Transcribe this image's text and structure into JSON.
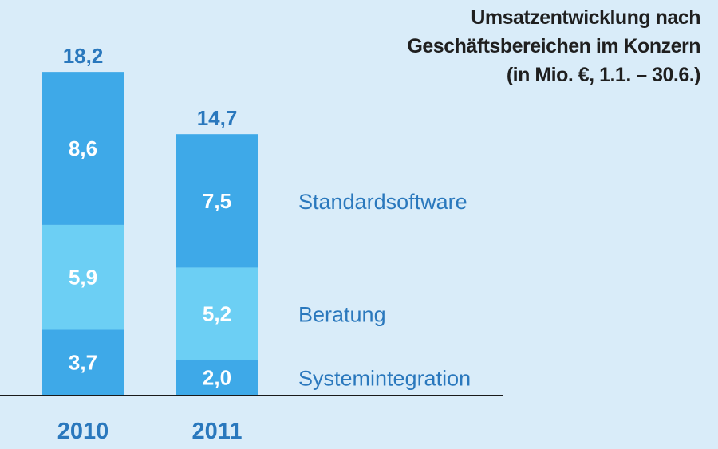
{
  "chart_data": {
    "type": "bar",
    "stacked": true,
    "title": [
      "Umsatzentwicklung nach",
      "Geschäftsbereichen im Konzern",
      "(in Mio. €, 1.1. – 30.6.)"
    ],
    "categories": [
      "2010",
      "2011"
    ],
    "totals": [
      "18,2",
      "14,7"
    ],
    "total_values": [
      18.2,
      14.7
    ],
    "series": [
      {
        "name": "Systemintegration",
        "values": [
          3.7,
          2.0
        ],
        "labels": [
          "3,7",
          "2,0"
        ],
        "color": "#3ea9e8"
      },
      {
        "name": "Beratung",
        "values": [
          5.9,
          5.2
        ],
        "labels": [
          "5,9",
          "5,2"
        ],
        "color": "#6ccff4"
      },
      {
        "name": "Standardsoftware",
        "values": [
          8.6,
          7.5
        ],
        "labels": [
          "8,6",
          "7,5"
        ],
        "color": "#3ea9e8"
      }
    ],
    "legend_placement": "right, aligned with segments",
    "grid": false,
    "colors": {
      "background": "#d9ecf9",
      "label_blue": "#2a78bd",
      "title": "#1f1f1f",
      "baseline": "#1a1a1a"
    }
  }
}
